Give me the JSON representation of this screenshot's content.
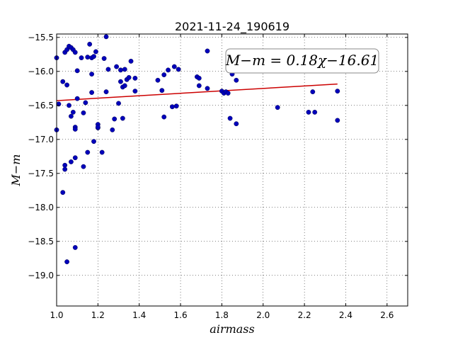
{
  "chart_data": {
    "type": "scatter",
    "title": "2021-11-24_190619",
    "xlabel": "airmass",
    "ylabel": "M−m",
    "xlim": [
      1.0,
      2.7
    ],
    "ylim": [
      -19.45,
      -15.45
    ],
    "y_inverted": true,
    "grid": true,
    "x_ticks": [
      "1.0",
      "1.2",
      "1.4",
      "1.6",
      "1.8",
      "2.0",
      "2.2",
      "2.4",
      "2.6"
    ],
    "x_tick_values": [
      1.0,
      1.2,
      1.4,
      1.6,
      1.8,
      2.0,
      2.2,
      2.4,
      2.6
    ],
    "y_ticks": [
      "−15.5",
      "−16.0",
      "−16.5",
      "−17.0",
      "−17.5",
      "−18.0",
      "−18.5",
      "−19.0"
    ],
    "y_tick_values": [
      -15.5,
      -16.0,
      -16.5,
      -17.0,
      -17.5,
      -18.0,
      -18.5,
      -19.0
    ],
    "annotation": "M−m = 0.18χ−16.61",
    "marker_color": "#0000bb",
    "fit_color": "#cc0000",
    "fit": {
      "slope": 0.18,
      "intercept": -16.61,
      "x_range": [
        1.0,
        2.36
      ]
    },
    "points": [
      [
        1.0,
        -15.8
      ],
      [
        1.0,
        -16.86
      ],
      [
        1.01,
        -16.48
      ],
      [
        1.03,
        -16.15
      ],
      [
        1.04,
        -15.72
      ],
      [
        1.05,
        -15.68
      ],
      [
        1.06,
        -15.63
      ],
      [
        1.07,
        -15.65
      ],
      [
        1.08,
        -15.68
      ],
      [
        1.09,
        -15.72
      ],
      [
        1.04,
        -17.38
      ],
      [
        1.04,
        -17.44
      ],
      [
        1.03,
        -17.78
      ],
      [
        1.05,
        -18.8
      ],
      [
        1.09,
        -18.59
      ],
      [
        1.05,
        -16.2
      ],
      [
        1.06,
        -16.5
      ],
      [
        1.07,
        -16.66
      ],
      [
        1.08,
        -16.6
      ],
      [
        1.09,
        -16.82
      ],
      [
        1.09,
        -16.85
      ],
      [
        1.1,
        -16.4
      ],
      [
        1.07,
        -17.33
      ],
      [
        1.09,
        -17.27
      ],
      [
        1.1,
        -15.99
      ],
      [
        1.12,
        -15.8
      ],
      [
        1.13,
        -17.4
      ],
      [
        1.13,
        -16.61
      ],
      [
        1.14,
        -16.46
      ],
      [
        1.15,
        -15.79
      ],
      [
        1.15,
        -17.19
      ],
      [
        1.16,
        -15.6
      ],
      [
        1.17,
        -15.8
      ],
      [
        1.18,
        -15.78
      ],
      [
        1.17,
        -16.04
      ],
      [
        1.17,
        -16.31
      ],
      [
        1.18,
        -17.03
      ],
      [
        1.19,
        -15.71
      ],
      [
        1.2,
        -16.78
      ],
      [
        1.2,
        -16.83
      ],
      [
        1.2,
        -16.82
      ],
      [
        1.22,
        -17.19
      ],
      [
        1.23,
        -15.81
      ],
      [
        1.24,
        -15.49
      ],
      [
        1.24,
        -16.3
      ],
      [
        1.25,
        -15.97
      ],
      [
        1.27,
        -16.86
      ],
      [
        1.28,
        -16.7
      ],
      [
        1.29,
        -15.93
      ],
      [
        1.3,
        -16.47
      ],
      [
        1.31,
        -15.98
      ],
      [
        1.31,
        -16.15
      ],
      [
        1.32,
        -16.23
      ],
      [
        1.32,
        -16.69
      ],
      [
        1.33,
        -15.97
      ],
      [
        1.33,
        -16.21
      ],
      [
        1.34,
        -16.12
      ],
      [
        1.35,
        -16.09
      ],
      [
        1.36,
        -15.85
      ],
      [
        1.38,
        -16.1
      ],
      [
        1.38,
        -16.29
      ],
      [
        1.49,
        -16.13
      ],
      [
        1.51,
        -16.28
      ],
      [
        1.52,
        -16.05
      ],
      [
        1.52,
        -16.67
      ],
      [
        1.54,
        -15.98
      ],
      [
        1.56,
        -16.52
      ],
      [
        1.57,
        -15.93
      ],
      [
        1.58,
        -16.51
      ],
      [
        1.59,
        -15.97
      ],
      [
        1.68,
        -16.08
      ],
      [
        1.69,
        -16.1
      ],
      [
        1.69,
        -16.21
      ],
      [
        1.73,
        -15.7
      ],
      [
        1.73,
        -16.25
      ],
      [
        1.8,
        -16.29
      ],
      [
        1.81,
        -16.32
      ],
      [
        1.82,
        -16.3
      ],
      [
        1.83,
        -16.32
      ],
      [
        1.84,
        -16.69
      ],
      [
        1.85,
        -16.04
      ],
      [
        1.87,
        -16.77
      ],
      [
        1.87,
        -16.13
      ],
      [
        2.07,
        -16.53
      ],
      [
        2.22,
        -16.6
      ],
      [
        2.24,
        -16.3
      ],
      [
        2.25,
        -16.6
      ],
      [
        2.36,
        -16.29
      ],
      [
        2.36,
        -16.72
      ]
    ]
  }
}
